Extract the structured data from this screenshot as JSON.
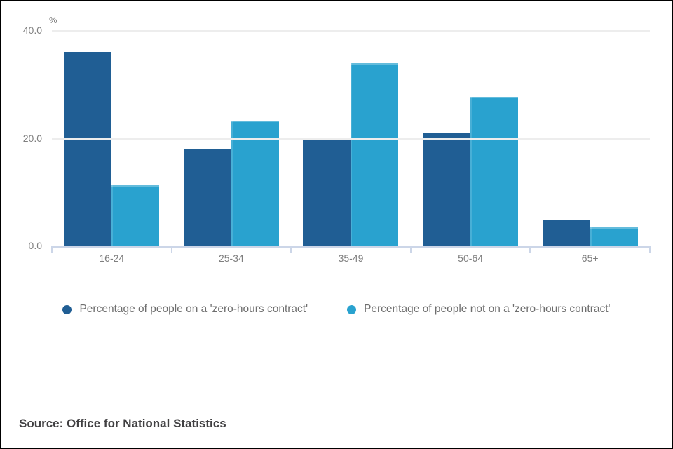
{
  "chart_data": {
    "type": "bar",
    "title": "",
    "unit_label": "%",
    "categories": [
      "16-24",
      "25-34",
      "35-49",
      "50-64",
      "65+"
    ],
    "series": [
      {
        "name": "Percentage of people on a 'zero-hours contract'",
        "color": "#205e94",
        "values": [
          36.1,
          18.1,
          19.7,
          21.0,
          5.0
        ]
      },
      {
        "name": "Percentage of people not on a 'zero-hours contract'",
        "color": "#29a2cf",
        "values": [
          11.3,
          23.3,
          34.0,
          27.7,
          3.5
        ]
      }
    ],
    "ylim": [
      0,
      40
    ],
    "yticks": [
      0,
      20,
      40
    ],
    "ytick_labels": [
      "0.0",
      "20.0",
      "40.0"
    ],
    "grid": true,
    "legend_position": "bottom"
  },
  "colors": {
    "axis": "#ccd6e8",
    "gridline": "#ededed",
    "tick_text": "#7f7f7f",
    "legend_text": "#6e6e6e",
    "source_text": "#414042",
    "frame_border": "#000000"
  },
  "source": {
    "text": "Source: Office for National Statistics"
  }
}
